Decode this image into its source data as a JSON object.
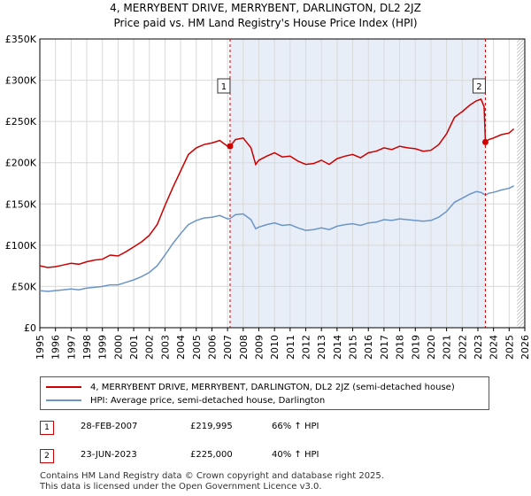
{
  "title_line1": "4, MERRYBENT DRIVE, MERRYBENT, DARLINGTON, DL2 2JZ",
  "title_line2": "Price paid vs. HM Land Registry's House Price Index (HPI)",
  "colors": {
    "property": "#cc0000",
    "hpi": "#6b95c6",
    "shade": "#e8eef8",
    "grid": "#d9d9d9",
    "sale_line": "#cc0000"
  },
  "chart_data": {
    "type": "line",
    "title": "Price paid vs. HM Land Registry's House Price Index (HPI)",
    "xlabel": "",
    "ylabel": "",
    "xlim": [
      1995,
      2026
    ],
    "ylim": [
      0,
      350000
    ],
    "x_ticks": [
      "1995",
      "1996",
      "1997",
      "1998",
      "1999",
      "2000",
      "2001",
      "2002",
      "2003",
      "2004",
      "2005",
      "2006",
      "2007",
      "2008",
      "2009",
      "2010",
      "2011",
      "2012",
      "2013",
      "2014",
      "2015",
      "2016",
      "2017",
      "2018",
      "2019",
      "2020",
      "2021",
      "2022",
      "2023",
      "2024",
      "2025",
      "2026"
    ],
    "y_ticks": [
      {
        "value": 0,
        "label": "£0"
      },
      {
        "value": 50000,
        "label": "£50K"
      },
      {
        "value": 100000,
        "label": "£100K"
      },
      {
        "value": 150000,
        "label": "£150K"
      },
      {
        "value": 200000,
        "label": "£200K"
      },
      {
        "value": 250000,
        "label": "£250K"
      },
      {
        "value": 300000,
        "label": "£300K"
      },
      {
        "value": 350000,
        "label": "£350K"
      }
    ],
    "grid": true,
    "shaded_range": [
      2007.16,
      2023.48
    ],
    "future_hatch_from": 2025.5,
    "series": [
      {
        "name": "4, MERRYBENT DRIVE, MERRYBENT, DARLINGTON, DL2 2JZ (semi-detached house)",
        "color": "#cc0000",
        "x": [
          1995.0,
          1995.5,
          1996.0,
          1996.5,
          1997.0,
          1997.5,
          1998.0,
          1998.5,
          1999.0,
          1999.5,
          2000.0,
          2000.5,
          2001.0,
          2001.5,
          2002.0,
          2002.5,
          2003.0,
          2003.5,
          2004.0,
          2004.5,
          2005.0,
          2005.5,
          2006.0,
          2006.5,
          2007.0,
          2007.16,
          2007.5,
          2008.0,
          2008.5,
          2008.8,
          2009.0,
          2009.5,
          2010.0,
          2010.5,
          2011.0,
          2011.5,
          2012.0,
          2012.5,
          2013.0,
          2013.5,
          2014.0,
          2014.5,
          2015.0,
          2015.5,
          2016.0,
          2016.5,
          2017.0,
          2017.5,
          2018.0,
          2018.5,
          2019.0,
          2019.5,
          2020.0,
          2020.5,
          2021.0,
          2021.5,
          2022.0,
          2022.5,
          2022.9,
          2023.2,
          2023.4,
          2023.48,
          2023.7,
          2024.0,
          2024.5,
          2025.0,
          2025.3
        ],
        "y": [
          75000,
          73000,
          74000,
          76000,
          78000,
          77000,
          80000,
          82000,
          83000,
          88000,
          87000,
          92000,
          98000,
          104000,
          112000,
          125000,
          148000,
          170000,
          190000,
          210000,
          218000,
          222000,
          224000,
          227000,
          220000,
          219995,
          228000,
          230000,
          218000,
          198000,
          203000,
          208000,
          212000,
          207000,
          208000,
          202000,
          198000,
          199000,
          203000,
          198000,
          205000,
          208000,
          210000,
          206000,
          212000,
          214000,
          218000,
          216000,
          220000,
          218000,
          217000,
          214000,
          215000,
          222000,
          235000,
          255000,
          262000,
          270000,
          275000,
          277000,
          268000,
          225000,
          228000,
          230000,
          234000,
          236000,
          241000
        ]
      },
      {
        "name": "HPI: Average price, semi-detached house, Darlington",
        "color": "#6b95c6",
        "x": [
          1995.0,
          1995.5,
          1996.0,
          1996.5,
          1997.0,
          1997.5,
          1998.0,
          1998.5,
          1999.0,
          1999.5,
          2000.0,
          2000.5,
          2001.0,
          2001.5,
          2002.0,
          2002.5,
          2003.0,
          2003.5,
          2004.0,
          2004.5,
          2005.0,
          2005.5,
          2006.0,
          2006.5,
          2007.0,
          2007.16,
          2007.5,
          2008.0,
          2008.5,
          2008.8,
          2009.0,
          2009.5,
          2010.0,
          2010.5,
          2011.0,
          2011.5,
          2012.0,
          2012.5,
          2013.0,
          2013.5,
          2014.0,
          2014.5,
          2015.0,
          2015.5,
          2016.0,
          2016.5,
          2017.0,
          2017.5,
          2018.0,
          2018.5,
          2019.0,
          2019.5,
          2020.0,
          2020.5,
          2021.0,
          2021.5,
          2022.0,
          2022.5,
          2022.9,
          2023.2,
          2023.48,
          2023.7,
          2024.0,
          2024.5,
          2025.0,
          2025.3
        ],
        "y": [
          45000,
          44000,
          45000,
          46000,
          47000,
          46000,
          48000,
          49000,
          50000,
          52000,
          52000,
          55000,
          58000,
          62000,
          67000,
          75000,
          88000,
          102000,
          114000,
          125000,
          130000,
          133000,
          134000,
          136000,
          132000,
          132400,
          137000,
          138000,
          131000,
          120000,
          122000,
          125000,
          127000,
          124000,
          125000,
          121000,
          118000,
          119000,
          121000,
          119000,
          123000,
          125000,
          126000,
          124000,
          127000,
          128000,
          131000,
          130000,
          132000,
          131000,
          130000,
          129000,
          130000,
          134000,
          141000,
          152000,
          157000,
          162000,
          165000,
          164000,
          160700,
          163000,
          164000,
          167000,
          169000,
          172000
        ]
      }
    ],
    "annotations": [
      {
        "label": "1",
        "x": 2007.16,
        "y": 219995
      },
      {
        "label": "2",
        "x": 2023.48,
        "y": 225000
      }
    ]
  },
  "legend": {
    "property_label": "4, MERRYBENT DRIVE, MERRYBENT, DARLINGTON, DL2 2JZ (semi-detached house)",
    "hpi_label": "HPI: Average price, semi-detached house, Darlington"
  },
  "sales": [
    {
      "num": "1",
      "date": "28-FEB-2007",
      "price": "£219,995",
      "hpi": "66% ↑ HPI"
    },
    {
      "num": "2",
      "date": "23-JUN-2023",
      "price": "£225,000",
      "hpi": "40% ↑ HPI"
    }
  ],
  "footer": {
    "line1": "Contains HM Land Registry data © Crown copyright and database right 2025.",
    "line2": "This data is licensed under the Open Government Licence v3.0."
  }
}
